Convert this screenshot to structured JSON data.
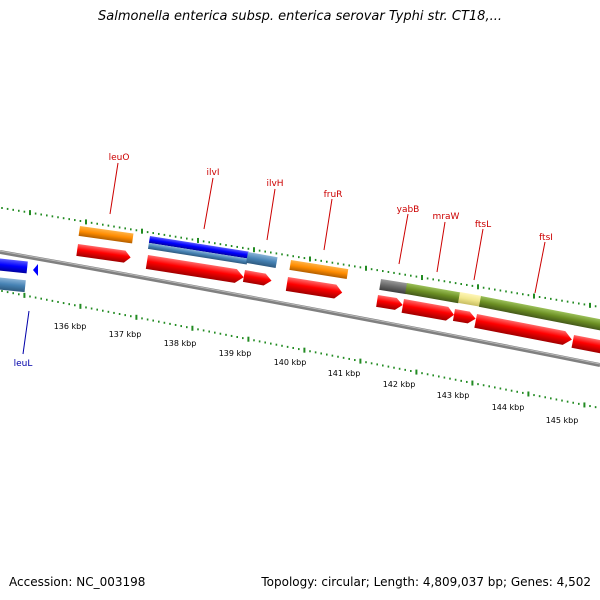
{
  "header": {
    "title": "Salmonella enterica subsp. enterica serovar Typhi str. CT18,..."
  },
  "footer": {
    "accession": "Accession: NC_003198",
    "topology": "Topology: circular; Length: 4,809,037 bp; Genes: 4,502"
  },
  "ruler": {
    "labels": [
      "136 kbp",
      "137 kbp",
      "138 kbp",
      "139 kbp",
      "140 kbp",
      "141 kbp",
      "142 kbp",
      "143 kbp",
      "144 kbp",
      "145 kbp"
    ]
  },
  "genes": {
    "leuO": "leuO",
    "ilvI": "ilvI",
    "ilvH": "ilvH",
    "fruR": "fruR",
    "yabB": "yabB",
    "mraW": "mraW",
    "ftsL": "ftsL",
    "ftsI": "ftsI",
    "leuL": "leuL"
  },
  "colors": {
    "cds_red": "#ff0000",
    "gene_orange": "#ff8c00",
    "gene_blue": "#0000ff",
    "gene_steelblue": "#4682b4",
    "gene_olive": "#6b8e23",
    "gene_khaki": "#f0e68c",
    "gene_gray": "#696969",
    "backbone": "#808080",
    "tick_green": "#228b22",
    "label_red": "#cc0000",
    "label_blue": "#0000aa"
  }
}
